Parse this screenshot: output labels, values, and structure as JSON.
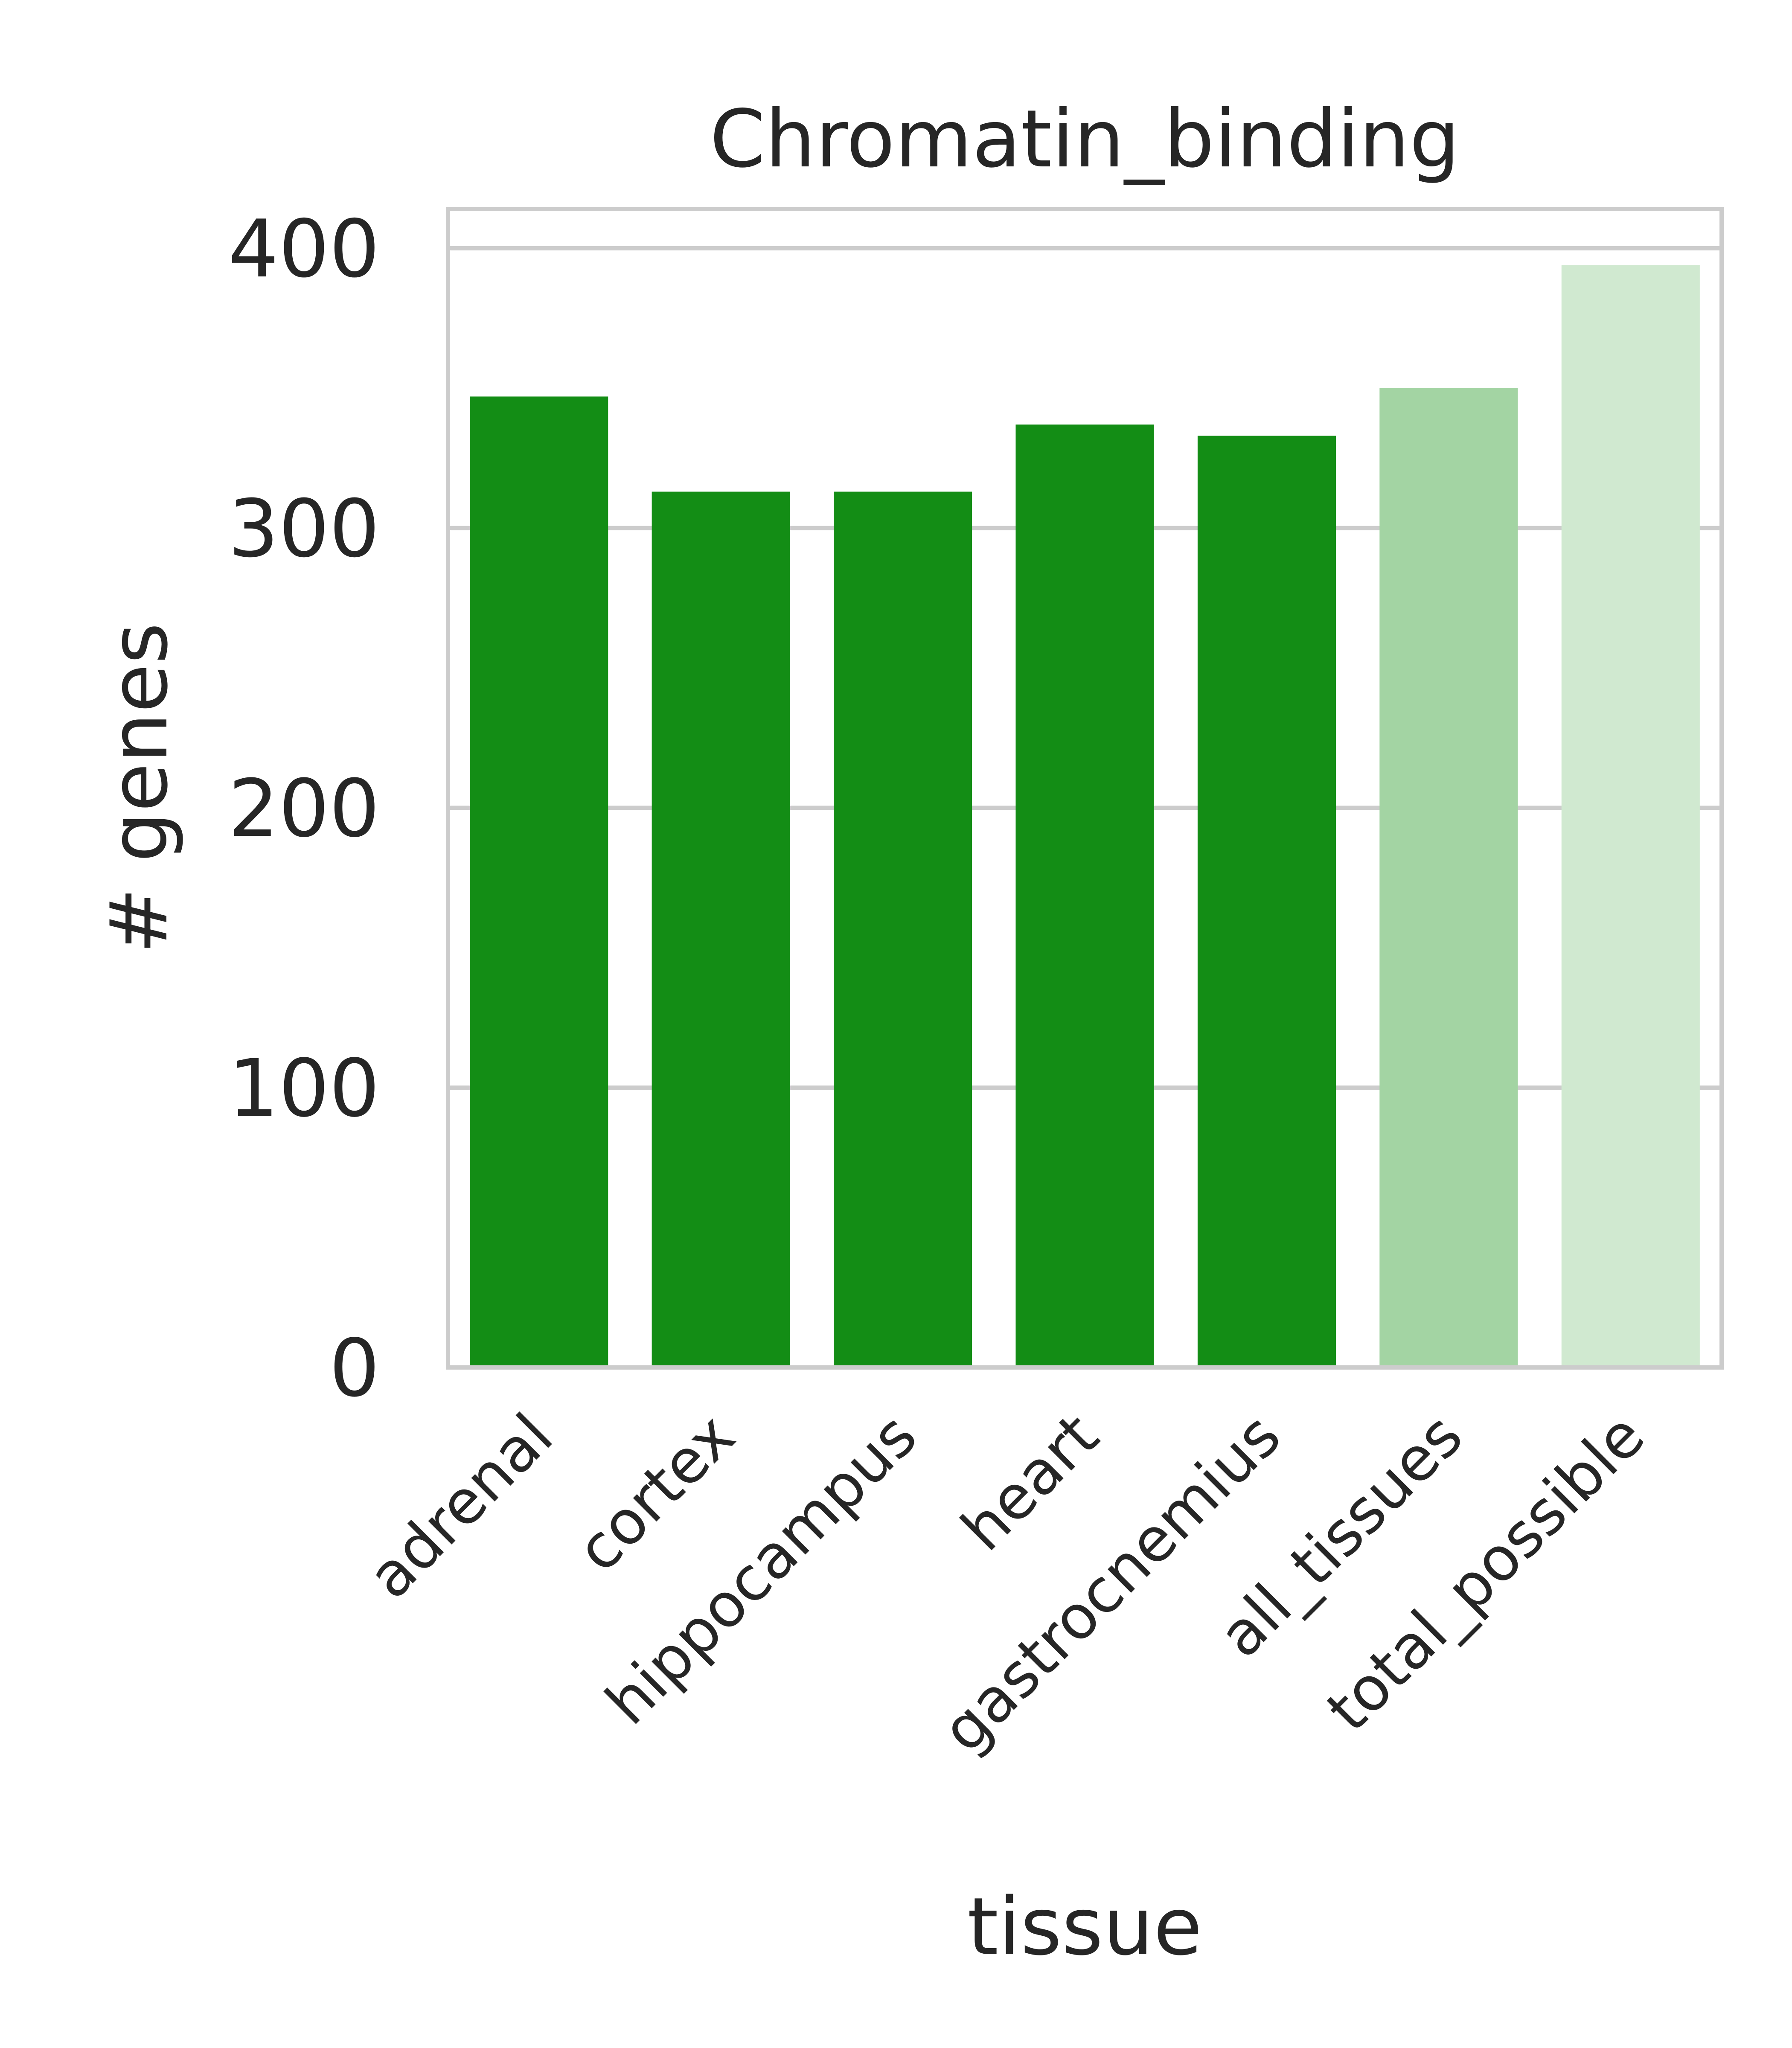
{
  "chart_data": {
    "type": "bar",
    "title": "Chromatin_binding",
    "xlabel": "tissue",
    "ylabel": "# genes",
    "categories": [
      "adrenal",
      "cortex",
      "hippocampus",
      "heart",
      "gastrocnemius",
      "all_tissues",
      "total_possible"
    ],
    "values": [
      347,
      313,
      313,
      337,
      333,
      350,
      394
    ],
    "bar_colors": [
      "#138d15",
      "#138d15",
      "#138d15",
      "#138d15",
      "#138d15",
      "#a3d4a3",
      "#d0e9d0"
    ],
    "ylim": [
      0,
      414
    ],
    "yticks": [
      "0",
      "100",
      "200",
      "300",
      "400"
    ],
    "grid": "y",
    "legend": "none"
  },
  "colors": {
    "grid": "#cccccc",
    "frame": "#cccccc",
    "text": "#262626"
  }
}
